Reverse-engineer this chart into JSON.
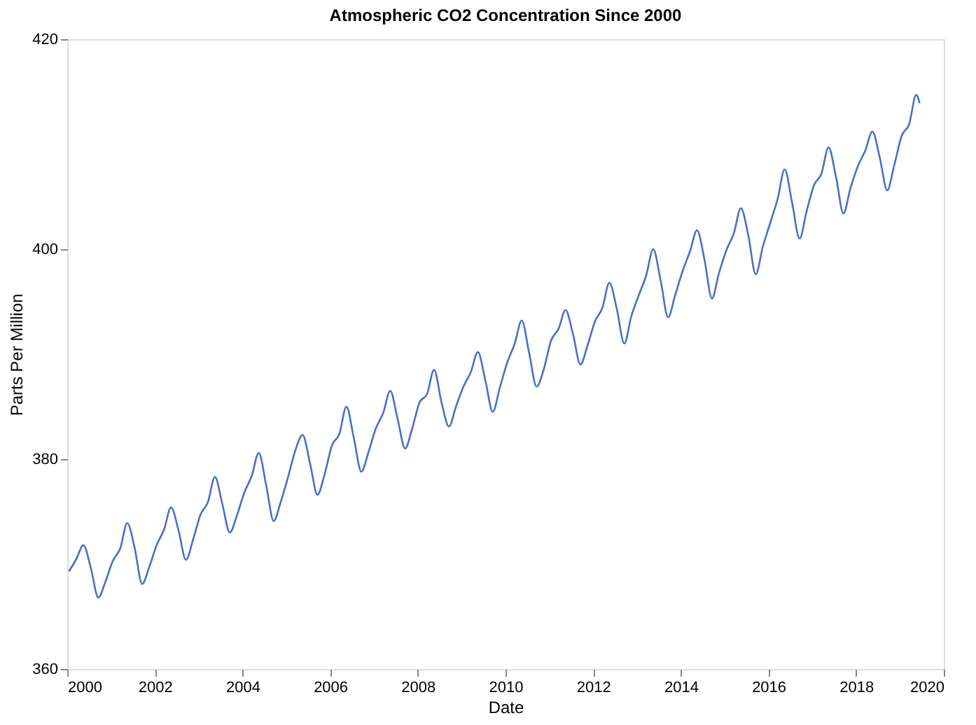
{
  "chart_data": {
    "type": "line",
    "title": "Atmospheric CO2 Concentration Since 2000",
    "xlabel": "Date",
    "ylabel": "Parts Per Million",
    "xlim": [
      2000,
      2020
    ],
    "xticks": [
      2000,
      2002,
      2004,
      2006,
      2008,
      2010,
      2012,
      2014,
      2016,
      2018,
      2020
    ],
    "ylim": [
      360,
      420
    ],
    "yticks": [
      360,
      380,
      400,
      420
    ],
    "grid": false,
    "legend": false,
    "marker": "none",
    "line_style": "solid",
    "series": [
      {
        "color": "#4a6fc4",
        "x": [
          2000.04,
          2000.21,
          2000.37,
          2000.54,
          2000.71,
          2000.87,
          2001.04,
          2001.21,
          2001.37,
          2001.54,
          2001.71,
          2001.87,
          2002.04,
          2002.21,
          2002.37,
          2002.54,
          2002.71,
          2002.87,
          2003.04,
          2003.21,
          2003.37,
          2003.54,
          2003.71,
          2003.87,
          2004.04,
          2004.21,
          2004.37,
          2004.54,
          2004.71,
          2004.87,
          2005.04,
          2005.21,
          2005.37,
          2005.54,
          2005.71,
          2005.87,
          2006.04,
          2006.21,
          2006.37,
          2006.54,
          2006.71,
          2006.87,
          2007.04,
          2007.21,
          2007.37,
          2007.54,
          2007.71,
          2007.87,
          2008.04,
          2008.21,
          2008.37,
          2008.54,
          2008.71,
          2008.87,
          2009.04,
          2009.21,
          2009.37,
          2009.54,
          2009.71,
          2009.87,
          2010.04,
          2010.21,
          2010.37,
          2010.54,
          2010.71,
          2010.87,
          2011.04,
          2011.21,
          2011.37,
          2011.54,
          2011.71,
          2011.87,
          2012.04,
          2012.21,
          2012.37,
          2012.54,
          2012.71,
          2012.87,
          2013.04,
          2013.21,
          2013.37,
          2013.54,
          2013.71,
          2013.87,
          2014.04,
          2014.21,
          2014.37,
          2014.54,
          2014.71,
          2014.87,
          2015.04,
          2015.21,
          2015.37,
          2015.54,
          2015.71,
          2015.87,
          2016.04,
          2016.21,
          2016.37,
          2016.54,
          2016.71,
          2016.87,
          2017.04,
          2017.21,
          2017.37,
          2017.54,
          2017.71,
          2017.87,
          2018.04,
          2018.21,
          2018.37,
          2018.54,
          2018.71,
          2018.87,
          2019.04,
          2019.21,
          2019.37,
          2019.45
        ],
        "values": [
          369.3,
          370.5,
          371.8,
          369.6,
          366.8,
          368.3,
          370.3,
          371.5,
          373.9,
          371.5,
          368.1,
          369.7,
          371.8,
          373.3,
          375.4,
          373.2,
          370.4,
          372.3,
          374.7,
          375.9,
          378.3,
          375.7,
          373.0,
          374.6,
          376.8,
          378.4,
          380.6,
          377.5,
          374.1,
          375.9,
          378.3,
          380.9,
          382.3,
          379.6,
          376.6,
          378.5,
          381.3,
          382.4,
          385.0,
          382.0,
          378.8,
          380.6,
          382.9,
          384.4,
          386.5,
          383.8,
          381.0,
          382.9,
          385.4,
          386.2,
          388.5,
          385.4,
          383.1,
          385.0,
          386.9,
          388.3,
          390.2,
          387.5,
          384.5,
          386.8,
          389.2,
          391.0,
          393.2,
          390.1,
          386.9,
          388.5,
          391.3,
          392.4,
          394.2,
          391.9,
          389.0,
          390.8,
          393.1,
          394.4,
          396.8,
          394.3,
          391.0,
          393.6,
          395.6,
          397.5,
          400.0,
          397.0,
          393.5,
          395.6,
          397.9,
          399.8,
          401.8,
          399.0,
          395.3,
          397.7,
          399.9,
          401.5,
          403.9,
          401.3,
          397.6,
          400.2,
          402.5,
          404.8,
          407.6,
          404.4,
          401.0,
          403.6,
          406.1,
          407.2,
          409.7,
          406.9,
          403.4,
          405.8,
          407.9,
          409.4,
          411.2,
          408.7,
          405.6,
          408.0,
          410.8,
          411.9,
          414.7,
          413.9
        ]
      }
    ]
  }
}
